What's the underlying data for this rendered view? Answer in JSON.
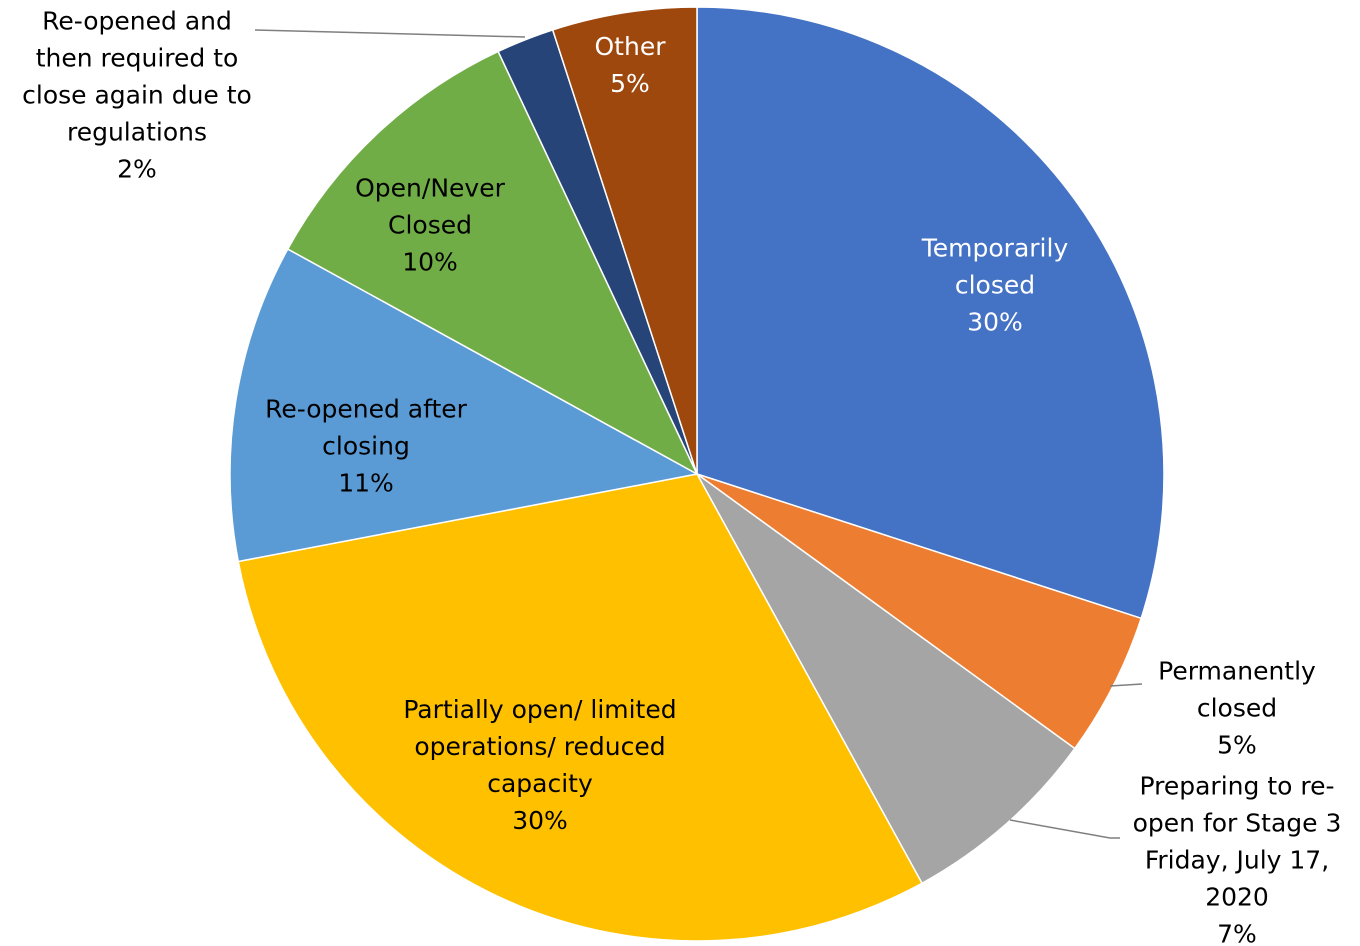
{
  "chart_data": {
    "type": "pie",
    "categories": [
      "Temporarily closed",
      "Permanently closed",
      "Preparing to re-open for Stage 3  Friday, July 17, 2020",
      "Partially open/ limited operations/ reduced capacity",
      "Re-opened after closing",
      "Open/Never Closed",
      "Re-opened and then required to close again due to regulations",
      "Other"
    ],
    "values": [
      30,
      5,
      7,
      30,
      11,
      10,
      2,
      5
    ],
    "value_labels": [
      "30%",
      "5%",
      "7%",
      "30%",
      "11%",
      "10%",
      "2%",
      "5%"
    ],
    "colors": [
      "#4472c4",
      "#ed7d31",
      "#a5a5a5",
      "#ffc000",
      "#5b9bd5",
      "#70ad47",
      "#264478",
      "#9e480e"
    ]
  }
}
